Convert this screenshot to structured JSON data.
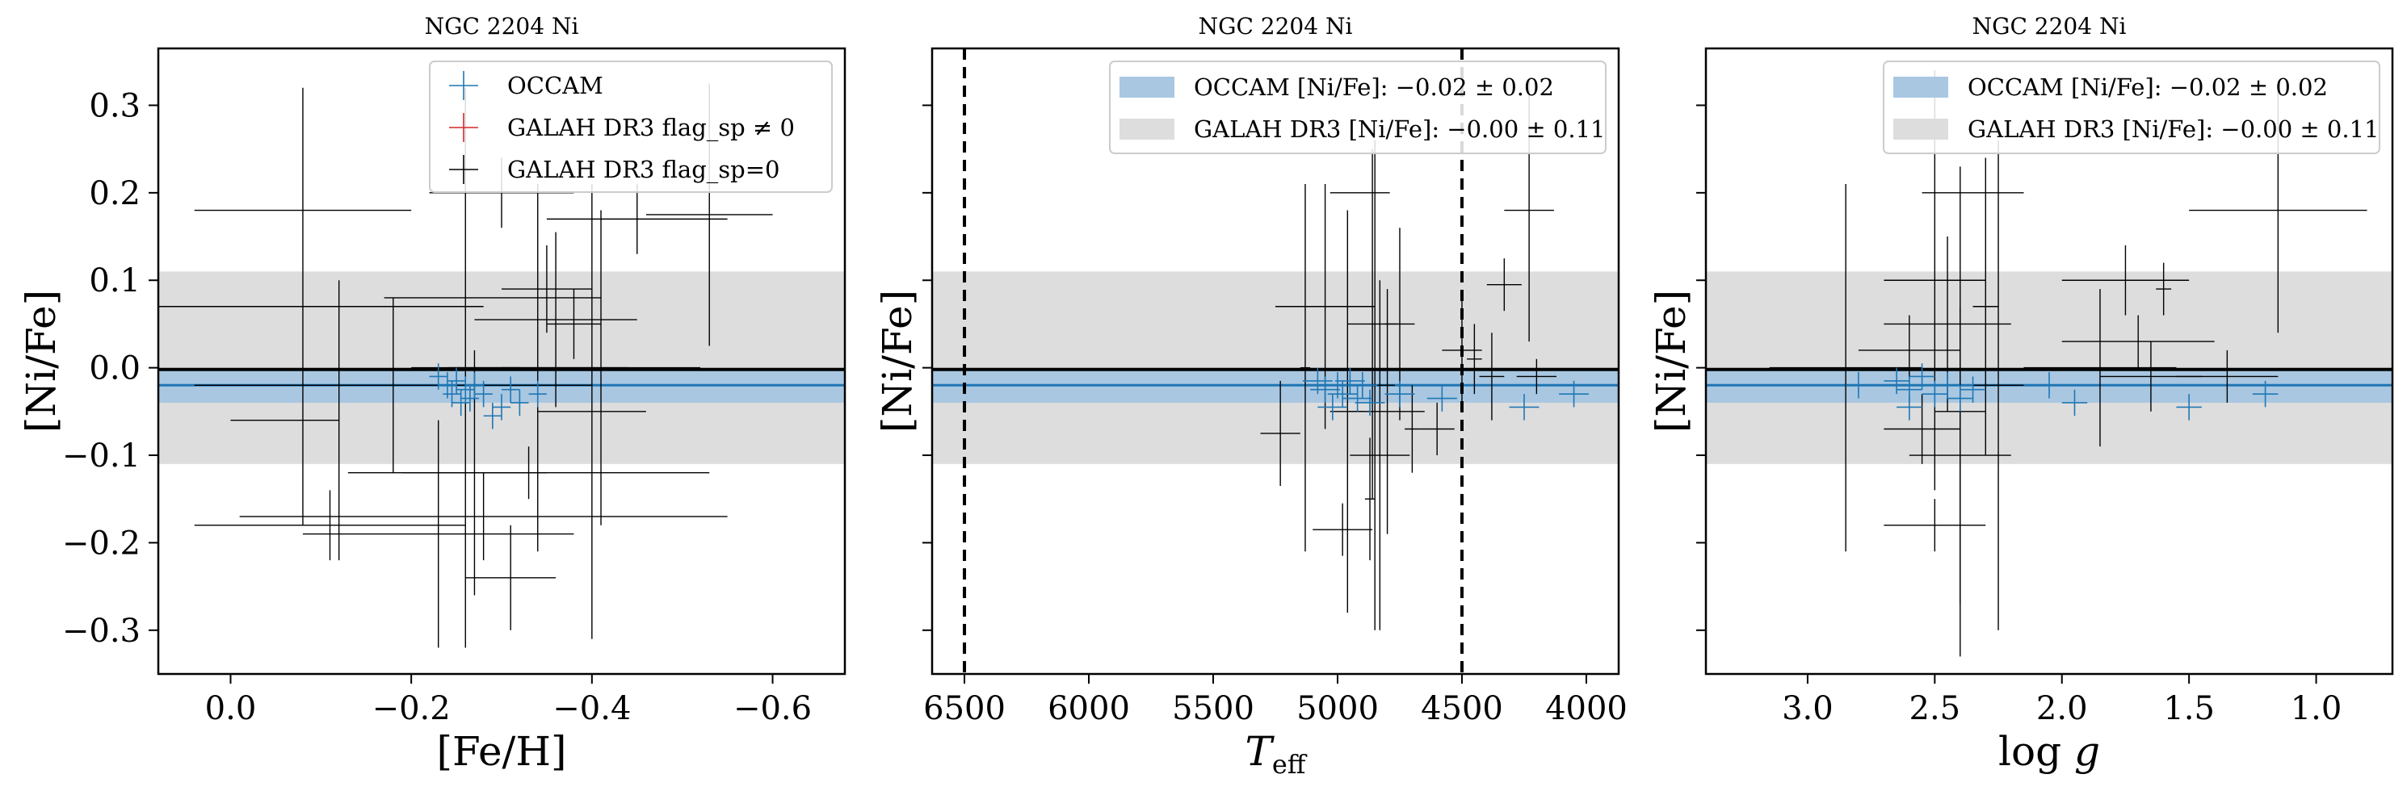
{
  "chart_data": [
    {
      "type": "scatter",
      "title": "NGC 2204 Ni",
      "xlabel": "[Fe/H]",
      "ylabel": "[Ni/Fe]",
      "xlim": [
        0.08,
        -0.68
      ],
      "ylim": [
        -0.35,
        0.365
      ],
      "x_ticks": [
        0.0,
        -0.2,
        -0.4,
        -0.6
      ],
      "x_tick_labels": [
        "0.0",
        "−0.2",
        "−0.4",
        "−0.6"
      ],
      "y_ticks": [
        -0.3,
        -0.2,
        -0.1,
        0.0,
        0.1,
        0.2,
        0.3
      ],
      "y_tick_labels": [
        "−0.3",
        "−0.2",
        "−0.1",
        "0.0",
        "0.1",
        "0.2",
        "0.3"
      ],
      "show_y_tick_labels": true,
      "legend_position": "upper right",
      "legend": [
        "OCCAM",
        "GALAH DR3 flag_sp ≠ 0",
        "GALAH DR3 flag_sp=0"
      ],
      "bands": [
        {
          "ymin": -0.11,
          "ymax": 0.11,
          "color": "#dddddd"
        },
        {
          "ymin": -0.04,
          "ymax": 0.0,
          "color": "#a9c7e1"
        }
      ],
      "hlines": [
        {
          "y": -0.002,
          "color": "#000000"
        },
        {
          "y": -0.02,
          "color": "#1f77b4"
        }
      ],
      "vlines": [],
      "occam": [
        {
          "x": -0.23,
          "y": -0.01,
          "xerr": 0.01,
          "yerr": 0.015
        },
        {
          "x": -0.24,
          "y": -0.02,
          "xerr": 0.01,
          "yerr": 0.015
        },
        {
          "x": -0.25,
          "y": -0.015,
          "xerr": 0.01,
          "yerr": 0.015
        },
        {
          "x": -0.245,
          "y": -0.03,
          "xerr": 0.01,
          "yerr": 0.015
        },
        {
          "x": -0.26,
          "y": -0.025,
          "xerr": 0.01,
          "yerr": 0.015
        },
        {
          "x": -0.27,
          "y": -0.02,
          "xerr": 0.01,
          "yerr": 0.015
        },
        {
          "x": -0.265,
          "y": -0.035,
          "xerr": 0.01,
          "yerr": 0.015
        },
        {
          "x": -0.28,
          "y": -0.03,
          "xerr": 0.01,
          "yerr": 0.015
        },
        {
          "x": -0.255,
          "y": -0.04,
          "xerr": 0.01,
          "yerr": 0.015
        },
        {
          "x": -0.3,
          "y": -0.045,
          "xerr": 0.01,
          "yerr": 0.015
        },
        {
          "x": -0.31,
          "y": -0.025,
          "xerr": 0.01,
          "yerr": 0.015
        },
        {
          "x": -0.32,
          "y": -0.04,
          "xerr": 0.01,
          "yerr": 0.015
        },
        {
          "x": -0.34,
          "y": -0.03,
          "xerr": 0.01,
          "yerr": 0.015
        },
        {
          "x": -0.29,
          "y": -0.055,
          "xerr": 0.01,
          "yerr": 0.015
        }
      ],
      "galah": [
        {
          "x": -0.26,
          "y": -0.0,
          "xerr": 0.06,
          "yerr": 0.32
        },
        {
          "x": -0.18,
          "y": -0.02,
          "xerr": 0.22,
          "yerr": 0.1
        },
        {
          "x": -0.3,
          "y": 0.2,
          "xerr": 0.08,
          "yerr": 0.04
        },
        {
          "x": -0.33,
          "y": -0.12,
          "xerr": 0.2,
          "yerr": 0.03
        },
        {
          "x": -0.34,
          "y": 0.0,
          "xerr": 0.1,
          "yerr": 0.21
        },
        {
          "x": -0.35,
          "y": 0.09,
          "xerr": 0.05,
          "yerr": 0.05
        },
        {
          "x": -0.36,
          "y": 0.055,
          "xerr": 0.09,
          "yerr": 0.1
        },
        {
          "x": -0.38,
          "y": 0.05,
          "xerr": 0.03,
          "yerr": 0.04
        },
        {
          "x": -0.4,
          "y": -0.05,
          "xerr": 0.06,
          "yerr": 0.26
        },
        {
          "x": -0.41,
          "y": 0.0,
          "xerr": 0.11,
          "yerr": 0.18
        },
        {
          "x": -0.45,
          "y": 0.17,
          "xerr": 0.1,
          "yerr": 0.04
        },
        {
          "x": -0.53,
          "y": 0.175,
          "xerr": 0.07,
          "yerr": 0.15
        },
        {
          "x": -0.12,
          "y": -0.06,
          "xerr": 0.0,
          "yerr": 0.16
        },
        {
          "x": -0.11,
          "y": -0.18,
          "xerr": 0.15,
          "yerr": 0.04
        },
        {
          "x": -0.08,
          "y": 0.18,
          "xerr": 0.12,
          "yerr": 0.0
        },
        {
          "x": -0.08,
          "y": 0.07,
          "xerr": 0.2,
          "yerr": 0.25
        },
        {
          "x": -0.06,
          "y": -0.06,
          "xerr": 0.06,
          "yerr": 0.0
        },
        {
          "x": -0.28,
          "y": -0.17,
          "xerr": 0.27,
          "yerr": 0.05
        },
        {
          "x": -0.31,
          "y": -0.24,
          "xerr": 0.05,
          "yerr": 0.06
        },
        {
          "x": -0.29,
          "y": 0.08,
          "xerr": 0.12,
          "yerr": 0.0
        },
        {
          "x": -0.23,
          "y": -0.19,
          "xerr": 0.15,
          "yerr": 0.13
        },
        {
          "x": -0.27,
          "y": -0.12,
          "xerr": 0.08,
          "yerr": 0.14
        }
      ]
    },
    {
      "type": "scatter",
      "title": "NGC 2204 Ni",
      "xlabel": "T_eff",
      "ylabel": "[Ni/Fe]",
      "xlim": [
        6630,
        3870
      ],
      "ylim": [
        -0.35,
        0.365
      ],
      "x_ticks": [
        6500,
        6000,
        5500,
        5000,
        4500,
        4000
      ],
      "x_tick_labels": [
        "6500",
        "6000",
        "5500",
        "5000",
        "4500",
        "4000"
      ],
      "y_ticks": [
        -0.3,
        -0.2,
        -0.1,
        0.0,
        0.1,
        0.2,
        0.3
      ],
      "y_tick_labels": [],
      "show_y_tick_labels": false,
      "legend_position": "upper right",
      "legend": [
        "OCCAM [Ni/Fe]: −0.02 ± 0.02",
        "GALAH DR3 [Ni/Fe]: −0.00 ± 0.11"
      ],
      "bands": [
        {
          "ymin": -0.11,
          "ymax": 0.11,
          "color": "#dddddd"
        },
        {
          "ymin": -0.04,
          "ymax": 0.0,
          "color": "#a9c7e1"
        }
      ],
      "hlines": [
        {
          "y": -0.002,
          "color": "#000000"
        },
        {
          "y": -0.02,
          "color": "#1f77b4"
        }
      ],
      "vlines": [
        6500,
        4500
      ],
      "occam": [
        {
          "x": 5080,
          "y": -0.015,
          "xerr": 60,
          "yerr": 0.015
        },
        {
          "x": 5050,
          "y": -0.025,
          "xerr": 60,
          "yerr": 0.015
        },
        {
          "x": 5000,
          "y": -0.02,
          "xerr": 60,
          "yerr": 0.015
        },
        {
          "x": 4980,
          "y": -0.03,
          "xerr": 60,
          "yerr": 0.015
        },
        {
          "x": 4950,
          "y": -0.015,
          "xerr": 60,
          "yerr": 0.015
        },
        {
          "x": 4920,
          "y": -0.035,
          "xerr": 60,
          "yerr": 0.015
        },
        {
          "x": 4900,
          "y": -0.02,
          "xerr": 60,
          "yerr": 0.015
        },
        {
          "x": 4870,
          "y": -0.04,
          "xerr": 60,
          "yerr": 0.015
        },
        {
          "x": 5020,
          "y": -0.045,
          "xerr": 60,
          "yerr": 0.015
        },
        {
          "x": 4750,
          "y": -0.03,
          "xerr": 60,
          "yerr": 0.015
        },
        {
          "x": 4580,
          "y": -0.035,
          "xerr": 60,
          "yerr": 0.015
        },
        {
          "x": 4250,
          "y": -0.045,
          "xerr": 60,
          "yerr": 0.015
        },
        {
          "x": 4050,
          "y": -0.03,
          "xerr": 60,
          "yerr": 0.015
        }
      ],
      "galah": [
        {
          "x": 5230,
          "y": -0.075,
          "xerr": 80,
          "yerr": 0.06
        },
        {
          "x": 5130,
          "y": 0.0,
          "xerr": 20,
          "yerr": 0.21
        },
        {
          "x": 5050,
          "y": 0.07,
          "xerr": 200,
          "yerr": 0.14
        },
        {
          "x": 4960,
          "y": -0.05,
          "xerr": 70,
          "yerr": 0.23
        },
        {
          "x": 4910,
          "y": 0.2,
          "xerr": 120,
          "yerr": 0.0
        },
        {
          "x": 4860,
          "y": 0.05,
          "xerr": 100,
          "yerr": 0.2
        },
        {
          "x": 4850,
          "y": -0.02,
          "xerr": 80,
          "yerr": 0.28
        },
        {
          "x": 4830,
          "y": -0.1,
          "xerr": 120,
          "yerr": 0.2
        },
        {
          "x": 4800,
          "y": -0.05,
          "xerr": 150,
          "yerr": 0.14
        },
        {
          "x": 4750,
          "y": 0.05,
          "xerr": 60,
          "yerr": 0.11
        },
        {
          "x": 4700,
          "y": -0.07,
          "xerr": 30,
          "yerr": 0.05
        },
        {
          "x": 4600,
          "y": -0.07,
          "xerr": 70,
          "yerr": 0.03
        },
        {
          "x": 4330,
          "y": 0.095,
          "xerr": 70,
          "yerr": 0.03
        },
        {
          "x": 4500,
          "y": 0.02,
          "xerr": 80,
          "yerr": 0.06
        },
        {
          "x": 4450,
          "y": 0.01,
          "xerr": 30,
          "yerr": 0.04
        },
        {
          "x": 4380,
          "y": -0.01,
          "xerr": 50,
          "yerr": 0.05
        },
        {
          "x": 4200,
          "y": -0.01,
          "xerr": 80,
          "yerr": 0.02
        },
        {
          "x": 4230,
          "y": 0.18,
          "xerr": 100,
          "yerr": 0.15
        },
        {
          "x": 4980,
          "y": -0.185,
          "xerr": 120,
          "yerr": 0.03
        },
        {
          "x": 4870,
          "y": -0.15,
          "xerr": 20,
          "yerr": 0.07
        }
      ]
    },
    {
      "type": "scatter",
      "title": "NGC 2204 Ni",
      "xlabel": "log g",
      "ylabel": "[Ni/Fe]",
      "xlim": [
        3.4,
        0.7
      ],
      "ylim": [
        -0.35,
        0.365
      ],
      "x_ticks": [
        3.0,
        2.5,
        2.0,
        1.5,
        1.0
      ],
      "x_tick_labels": [
        "3.0",
        "2.5",
        "2.0",
        "1.5",
        "1.0"
      ],
      "y_ticks": [
        -0.3,
        -0.2,
        -0.1,
        0.0,
        0.1,
        0.2,
        0.3
      ],
      "y_tick_labels": [],
      "show_y_tick_labels": false,
      "legend_position": "upper right",
      "legend": [
        "OCCAM [Ni/Fe]: −0.02 ± 0.02",
        "GALAH DR3 [Ni/Fe]: −0.00 ± 0.11"
      ],
      "bands": [
        {
          "ymin": -0.11,
          "ymax": 0.11,
          "color": "#dddddd"
        },
        {
          "ymin": -0.04,
          "ymax": 0.0,
          "color": "#a9c7e1"
        }
      ],
      "hlines": [
        {
          "y": -0.002,
          "color": "#000000"
        },
        {
          "y": -0.02,
          "color": "#1f77b4"
        }
      ],
      "vlines": [],
      "occam": [
        {
          "x": 2.8,
          "y": -0.02,
          "xerr": 0.05,
          "yerr": 0.015
        },
        {
          "x": 2.65,
          "y": -0.015,
          "xerr": 0.05,
          "yerr": 0.015
        },
        {
          "x": 2.6,
          "y": -0.025,
          "xerr": 0.05,
          "yerr": 0.015
        },
        {
          "x": 2.55,
          "y": -0.01,
          "xerr": 0.05,
          "yerr": 0.015
        },
        {
          "x": 2.5,
          "y": -0.03,
          "xerr": 0.05,
          "yerr": 0.015
        },
        {
          "x": 2.45,
          "y": -0.02,
          "xerr": 0.05,
          "yerr": 0.015
        },
        {
          "x": 2.4,
          "y": -0.035,
          "xerr": 0.05,
          "yerr": 0.015
        },
        {
          "x": 2.35,
          "y": -0.025,
          "xerr": 0.05,
          "yerr": 0.015
        },
        {
          "x": 2.6,
          "y": -0.045,
          "xerr": 0.05,
          "yerr": 0.015
        },
        {
          "x": 2.05,
          "y": -0.02,
          "xerr": 0.05,
          "yerr": 0.015
        },
        {
          "x": 1.95,
          "y": -0.04,
          "xerr": 0.05,
          "yerr": 0.015
        },
        {
          "x": 1.5,
          "y": -0.045,
          "xerr": 0.05,
          "yerr": 0.015
        },
        {
          "x": 1.2,
          "y": -0.03,
          "xerr": 0.05,
          "yerr": 0.015
        }
      ],
      "galah": [
        {
          "x": 2.85,
          "y": 0.0,
          "xerr": 0.3,
          "yerr": 0.21
        },
        {
          "x": 2.6,
          "y": 0.02,
          "xerr": 0.2,
          "yerr": 0.04
        },
        {
          "x": 2.5,
          "y": 0.1,
          "xerr": 0.2,
          "yerr": 0.24
        },
        {
          "x": 2.45,
          "y": 0.05,
          "xerr": 0.25,
          "yerr": 0.1
        },
        {
          "x": 2.4,
          "y": -0.05,
          "xerr": 0.1,
          "yerr": 0.28
        },
        {
          "x": 2.35,
          "y": 0.2,
          "xerr": 0.2,
          "yerr": 0.0
        },
        {
          "x": 2.3,
          "y": 0.07,
          "xerr": 0.05,
          "yerr": 0.17
        },
        {
          "x": 2.25,
          "y": -0.02,
          "xerr": 0.1,
          "yerr": 0.28
        },
        {
          "x": 2.4,
          "y": -0.1,
          "xerr": 0.2,
          "yerr": 0.17
        },
        {
          "x": 2.5,
          "y": -0.18,
          "xerr": 0.2,
          "yerr": 0.03
        },
        {
          "x": 2.55,
          "y": -0.07,
          "xerr": 0.15,
          "yerr": 0.04
        },
        {
          "x": 1.85,
          "y": 0.0,
          "xerr": 0.3,
          "yerr": 0.09
        },
        {
          "x": 1.75,
          "y": 0.1,
          "xerr": 0.25,
          "yerr": 0.04
        },
        {
          "x": 1.7,
          "y": 0.03,
          "xerr": 0.3,
          "yerr": 0.03
        },
        {
          "x": 1.65,
          "y": -0.01,
          "xerr": 0.2,
          "yerr": 0.04
        },
        {
          "x": 1.6,
          "y": 0.09,
          "xerr": 0.03,
          "yerr": 0.03
        },
        {
          "x": 1.35,
          "y": -0.01,
          "xerr": 0.2,
          "yerr": 0.03
        },
        {
          "x": 1.15,
          "y": 0.18,
          "xerr": 0.35,
          "yerr": 0.14
        }
      ]
    }
  ]
}
